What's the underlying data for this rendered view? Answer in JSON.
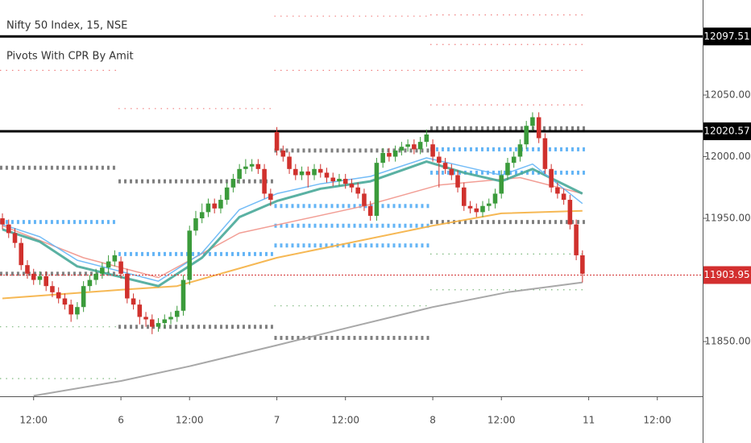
{
  "chart_data": {
    "type": "candlestick",
    "legend_lines": [
      "Nifty 50 Index, 15, NSE",
      "Pivots With CPR By Amit"
    ],
    "up_color": "#3b9b3b",
    "down_color": "#d0312d",
    "xlim": [
      -0.39,
      112.27
    ],
    "xticks": [
      {
        "value": 5,
        "label": "12:00"
      },
      6,
      {
        "value": 30,
        "label": "12:00"
      },
      7,
      {
        "value": 55,
        "label": "12:00"
      },
      8,
      {
        "value": 80,
        "label": "12:00"
      },
      11,
      {
        "value": 105,
        "label": "12:00"
      }
    ],
    "xtick_pos": [
      5,
      19,
      30,
      44,
      55,
      69,
      80,
      94,
      105
    ],
    "ylim": [
      11805.6,
      12127.1
    ],
    "yticks": [
      {
        "value": 11850,
        "label": "11850.00"
      },
      {
        "value": 11950,
        "label": "11950.00"
      },
      {
        "value": 12000,
        "label": "12000.00"
      },
      {
        "value": 12050,
        "label": "12050.00"
      }
    ],
    "candles": {
      "open": [
        11950,
        11945,
        11938,
        11930,
        11912,
        11905,
        11900,
        11903,
        11895,
        11890,
        11885,
        11880,
        11872,
        11878,
        11895,
        11900,
        11905,
        11910,
        11915,
        11915,
        11905,
        11885,
        11880,
        11870,
        11868,
        11862,
        11865,
        11868,
        11870,
        11875,
        11900,
        11940,
        11950,
        11955,
        11962,
        11958,
        11965,
        11975,
        11982,
        11990,
        11992,
        11994,
        11990,
        11970,
        12020,
        12005,
        12000,
        11990,
        11985,
        11988,
        11985,
        11990,
        11987,
        11983,
        11980,
        11982,
        11978,
        11975,
        11970,
        11960,
        11952,
        11995,
        12003,
        12000,
        12005,
        12008,
        12010,
        12006,
        12012,
        12010,
        12000,
        11995,
        11990,
        11985,
        11975,
        11960,
        11958,
        11955,
        11960,
        11962,
        11970,
        11985,
        11995,
        12000,
        12010,
        12025,
        12032,
        12015,
        11990,
        11975,
        11970,
        11965,
        11945,
        11920
      ],
      "high": [
        11954,
        11949,
        11942,
        11934,
        11916,
        11909,
        11907,
        11907,
        11899,
        11894,
        11889,
        11884,
        11882,
        11899,
        11904,
        11909,
        11914,
        11920,
        11924,
        11919,
        11909,
        11889,
        11884,
        11874,
        11872,
        11869,
        11872,
        11874,
        11879,
        11904,
        11944,
        11956,
        11962,
        11966,
        11966,
        11969,
        11979,
        11986,
        11994,
        11998,
        11998,
        11998,
        11994,
        11974,
        12024,
        12009,
        12004,
        11994,
        11992,
        11992,
        11994,
        11994,
        11991,
        11987,
        11986,
        11986,
        11982,
        11979,
        11974,
        11964,
        11999,
        12007,
        12007,
        12009,
        12012,
        12014,
        12014,
        12016,
        12022,
        12014,
        12004,
        11999,
        11994,
        11989,
        11979,
        11964,
        11962,
        11964,
        11966,
        11974,
        11989,
        11999,
        12004,
        12014,
        12029,
        12036,
        12036,
        12019,
        11994,
        11979,
        11974,
        11969,
        11949,
        11924
      ],
      "low": [
        11941,
        11934,
        11926,
        11908,
        11901,
        11896,
        11896,
        11891,
        11886,
        11881,
        11876,
        11866,
        11868,
        11874,
        11891,
        11896,
        11901,
        11906,
        11911,
        11901,
        11881,
        11876,
        11864,
        11862,
        11856,
        11858,
        11861,
        11864,
        11866,
        11871,
        11896,
        11936,
        11946,
        11951,
        11954,
        11954,
        11961,
        11971,
        11978,
        11986,
        11988,
        11986,
        11966,
        11960,
        12001,
        11996,
        11986,
        11981,
        11981,
        11975,
        11981,
        11983,
        11979,
        11976,
        11976,
        11974,
        11971,
        11966,
        11956,
        11948,
        11948,
        11991,
        11996,
        11996,
        12001,
        12004,
        12002,
        12002,
        12008,
        11996,
        11975,
        11986,
        11981,
        11971,
        11956,
        11954,
        11951,
        11951,
        11956,
        11958,
        11966,
        11981,
        11991,
        11996,
        12006,
        12021,
        12011,
        11986,
        11971,
        11966,
        11961,
        11941,
        11916,
        11898
      ],
      "close": [
        11945,
        11938,
        11930,
        11912,
        11905,
        11900,
        11903,
        11895,
        11890,
        11885,
        11880,
        11872,
        11878,
        11895,
        11900,
        11905,
        11910,
        11915,
        11920,
        11905,
        11885,
        11880,
        11870,
        11868,
        11862,
        11865,
        11868,
        11870,
        11875,
        11900,
        11940,
        11950,
        11955,
        11962,
        11958,
        11965,
        11975,
        11982,
        11990,
        11992,
        11994,
        11990,
        11970,
        11965,
        12005,
        12000,
        11990,
        11985,
        11988,
        11985,
        11990,
        11987,
        11983,
        11980,
        11982,
        11978,
        11975,
        11970,
        11960,
        11952,
        11995,
        12003,
        12000,
        12005,
        12008,
        12010,
        12006,
        12012,
        12018,
        12000,
        11995,
        11990,
        11985,
        11975,
        11960,
        11958,
        11955,
        11960,
        11962,
        11970,
        11985,
        11995,
        12000,
        12010,
        12025,
        12032,
        12015,
        11990,
        11975,
        11970,
        11965,
        11945,
        11920,
        11905
      ]
    },
    "lines": [
      {
        "color": "#9e9e9e",
        "width": 2,
        "x": [
          5,
          19,
          30,
          44,
          56,
          69,
          81,
          93
        ],
        "values": [
          11806,
          11818,
          11830,
          11847,
          11862,
          11878,
          11890,
          11898
        ]
      },
      {
        "color": "#f5b041",
        "width": 2,
        "x": [
          0,
          19,
          28,
          44,
          69,
          80,
          93
        ],
        "values": [
          11885,
          11892,
          11895,
          11918,
          11944,
          11954,
          11956
        ]
      },
      {
        "color": "#f1948a",
        "width": 1.5,
        "x": [
          0,
          13,
          25,
          38,
          58,
          70,
          83,
          93
        ],
        "values": [
          11944,
          11918,
          11902,
          11938,
          11960,
          11977,
          11983,
          11970
        ]
      },
      {
        "color": "#48a999",
        "width": 3,
        "x": [
          0,
          6,
          12,
          25,
          32,
          38,
          44,
          51,
          59,
          68,
          74,
          80,
          85,
          93
        ],
        "values": [
          11941,
          11931,
          11911,
          11895,
          11918,
          11951,
          11964,
          11974,
          11980,
          11996,
          11987,
          11980,
          11990,
          11970
        ]
      },
      {
        "color": "#64b5f6",
        "width": 1.5,
        "x": [
          0,
          6,
          12,
          25,
          32,
          38,
          44,
          51,
          59,
          68,
          74,
          80,
          85,
          93
        ],
        "values": [
          11945,
          11935,
          11916,
          11899,
          11922,
          11957,
          11970,
          11978,
          11984,
          11999,
          11992,
          11985,
          11994,
          11962
        ]
      }
    ],
    "levels": [
      {
        "from": 0,
        "to": 18,
        "value": 12070,
        "color": "#f08080",
        "marker": "dot"
      },
      {
        "from": 0,
        "to": 18,
        "value": 11991,
        "color": "#808080",
        "marker": "diamond"
      },
      {
        "from": 0,
        "to": 18,
        "value": 11947,
        "color": "#64b5f6",
        "marker": "diamond"
      },
      {
        "from": 0,
        "to": 18,
        "value": 11905,
        "color": "#808080",
        "marker": "diamond"
      },
      {
        "from": 0,
        "to": 18,
        "value": 11862,
        "color": "#7cb87c",
        "marker": "dot"
      },
      {
        "from": 0,
        "to": 18,
        "value": 11820,
        "color": "#7cb87c",
        "marker": "dot"
      },
      {
        "from": 19,
        "to": 43,
        "value": 12039,
        "color": "#f08080",
        "marker": "dot"
      },
      {
        "from": 19,
        "to": 43,
        "value": 11980,
        "color": "#808080",
        "marker": "diamond"
      },
      {
        "from": 19,
        "to": 43,
        "value": 11921,
        "color": "#64b5f6",
        "marker": "diamond"
      },
      {
        "from": 19,
        "to": 43,
        "value": 11862,
        "color": "#808080",
        "marker": "diamond"
      },
      {
        "from": 44,
        "to": 68,
        "value": 12114,
        "color": "#f08080",
        "marker": "dot"
      },
      {
        "from": 44,
        "to": 68,
        "value": 12070,
        "color": "#f08080",
        "marker": "dot"
      },
      {
        "from": 44,
        "to": 68,
        "value": 12005,
        "color": "#808080",
        "marker": "diamond"
      },
      {
        "from": 44,
        "to": 68,
        "value": 11960,
        "color": "#64b5f6",
        "marker": "diamond"
      },
      {
        "from": 44,
        "to": 68,
        "value": 11944,
        "color": "#64b5f6",
        "marker": "diamond"
      },
      {
        "from": 44,
        "to": 68,
        "value": 11928,
        "color": "#64b5f6",
        "marker": "diamond"
      },
      {
        "from": 44,
        "to": 68,
        "value": 11879,
        "color": "#7cb87c",
        "marker": "dot"
      },
      {
        "from": 44,
        "to": 68,
        "value": 11853,
        "color": "#808080",
        "marker": "diamond"
      },
      {
        "from": 69,
        "to": 93,
        "value": 12115,
        "color": "#f08080",
        "marker": "dot"
      },
      {
        "from": 69,
        "to": 93,
        "value": 12091,
        "color": "#f08080",
        "marker": "dot"
      },
      {
        "from": 69,
        "to": 93,
        "value": 12070,
        "color": "#f08080",
        "marker": "dot"
      },
      {
        "from": 69,
        "to": 93,
        "value": 12042,
        "color": "#f08080",
        "marker": "dot"
      },
      {
        "from": 69,
        "to": 93,
        "value": 12023,
        "color": "#808080",
        "marker": "diamond"
      },
      {
        "from": 69,
        "to": 93,
        "value": 12006,
        "color": "#64b5f6",
        "marker": "diamond"
      },
      {
        "from": 69,
        "to": 93,
        "value": 11987,
        "color": "#64b5f6",
        "marker": "diamond"
      },
      {
        "from": 69,
        "to": 93,
        "value": 11947,
        "color": "#808080",
        "marker": "diamond"
      },
      {
        "from": 69,
        "to": 93,
        "value": 11921,
        "color": "#7cb87c",
        "marker": "dot"
      },
      {
        "from": 69,
        "to": 93,
        "value": 11892,
        "color": "#7cb87c",
        "marker": "dot"
      }
    ],
    "price_lines": [
      {
        "value": 12097.51,
        "color": "#000000",
        "style": "solid"
      },
      {
        "value": 12020.57,
        "color": "#000000",
        "style": "solid"
      },
      {
        "value": 11903.95,
        "color": "#d32f2f",
        "style": "dotted"
      }
    ]
  }
}
